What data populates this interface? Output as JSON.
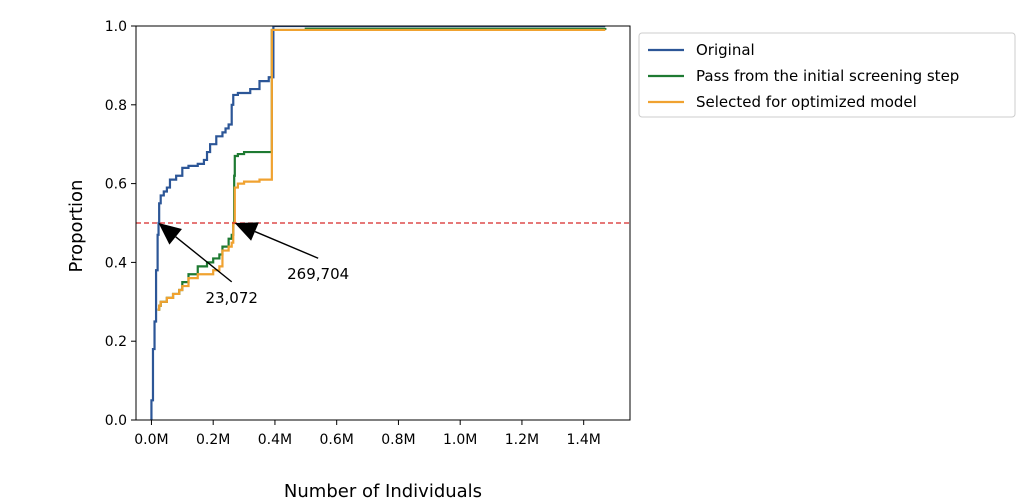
{
  "chart_data": {
    "type": "line",
    "title": "",
    "xlabel": "Number of Individuals",
    "ylabel": "Proportion",
    "xlim": [
      -0.05,
      1.55
    ],
    "ylim": [
      0.0,
      1.0
    ],
    "x_unit": "M",
    "xticks": [
      0.0,
      0.2,
      0.4,
      0.6,
      0.8,
      1.0,
      1.2,
      1.4
    ],
    "xtick_labels": [
      "0.0M",
      "0.2M",
      "0.4M",
      "0.6M",
      "0.8M",
      "1.0M",
      "1.2M",
      "1.4M"
    ],
    "yticks": [
      0.0,
      0.2,
      0.4,
      0.6,
      0.8,
      1.0
    ],
    "ytick_labels": [
      "0.0",
      "0.2",
      "0.4",
      "0.6",
      "0.8",
      "1.0"
    ],
    "grid": false,
    "legend_position": "outside-top-right",
    "reference_line": {
      "y": 0.5,
      "color": "#d62728",
      "style": "dashed"
    },
    "series": [
      {
        "name": "Original",
        "color": "#2c5697",
        "x": [
          0.0,
          0.0,
          0.005,
          0.01,
          0.015,
          0.02,
          0.023,
          0.025,
          0.03,
          0.04,
          0.05,
          0.06,
          0.08,
          0.1,
          0.12,
          0.15,
          0.17,
          0.18,
          0.19,
          0.2,
          0.21,
          0.22,
          0.23,
          0.24,
          0.25,
          0.26,
          0.265,
          0.27,
          0.28,
          0.3,
          0.32,
          0.35,
          0.38,
          0.39,
          0.395,
          0.4,
          0.45,
          1.47
        ],
        "y": [
          0.0,
          0.05,
          0.18,
          0.25,
          0.38,
          0.47,
          0.5,
          0.55,
          0.57,
          0.58,
          0.59,
          0.61,
          0.62,
          0.64,
          0.645,
          0.65,
          0.66,
          0.68,
          0.7,
          0.7,
          0.72,
          0.72,
          0.73,
          0.74,
          0.75,
          0.8,
          0.825,
          0.825,
          0.83,
          0.83,
          0.84,
          0.86,
          0.87,
          0.87,
          1.0,
          1.0,
          1.0,
          1.0
        ]
      },
      {
        "name": "Pass from the initial screening step",
        "color": "#1e7a32",
        "x": [
          0.02,
          0.025,
          0.03,
          0.05,
          0.07,
          0.09,
          0.1,
          0.12,
          0.15,
          0.18,
          0.2,
          0.22,
          0.23,
          0.24,
          0.25,
          0.26,
          0.265,
          0.268,
          0.27,
          0.28,
          0.3,
          0.35,
          0.38,
          0.39,
          0.4,
          0.5,
          1.47
        ],
        "y": [
          0.28,
          0.29,
          0.3,
          0.31,
          0.32,
          0.33,
          0.35,
          0.37,
          0.39,
          0.4,
          0.41,
          0.42,
          0.44,
          0.44,
          0.46,
          0.47,
          0.5,
          0.62,
          0.67,
          0.675,
          0.68,
          0.68,
          0.68,
          0.99,
          0.99,
          0.993,
          0.995
        ]
      },
      {
        "name": "Selected for optimized model",
        "color": "#f0a230",
        "x": [
          0.02,
          0.025,
          0.03,
          0.05,
          0.07,
          0.09,
          0.1,
          0.12,
          0.15,
          0.18,
          0.2,
          0.22,
          0.23,
          0.24,
          0.25,
          0.26,
          0.265,
          0.27,
          0.28,
          0.3,
          0.35,
          0.38,
          0.39,
          0.4,
          0.5,
          1.47
        ],
        "y": [
          0.28,
          0.29,
          0.3,
          0.31,
          0.32,
          0.33,
          0.34,
          0.36,
          0.37,
          0.37,
          0.38,
          0.39,
          0.43,
          0.43,
          0.44,
          0.45,
          0.5,
          0.59,
          0.6,
          0.605,
          0.61,
          0.61,
          0.99,
          0.99,
          0.99,
          0.99
        ]
      }
    ],
    "annotations": [
      {
        "text": "23,072",
        "point": [
          0.023,
          0.5
        ],
        "text_pos": [
          0.26,
          0.31
        ]
      },
      {
        "text": "269,704",
        "point": [
          0.2697,
          0.5
        ],
        "text_pos": [
          0.54,
          0.37
        ]
      }
    ]
  }
}
